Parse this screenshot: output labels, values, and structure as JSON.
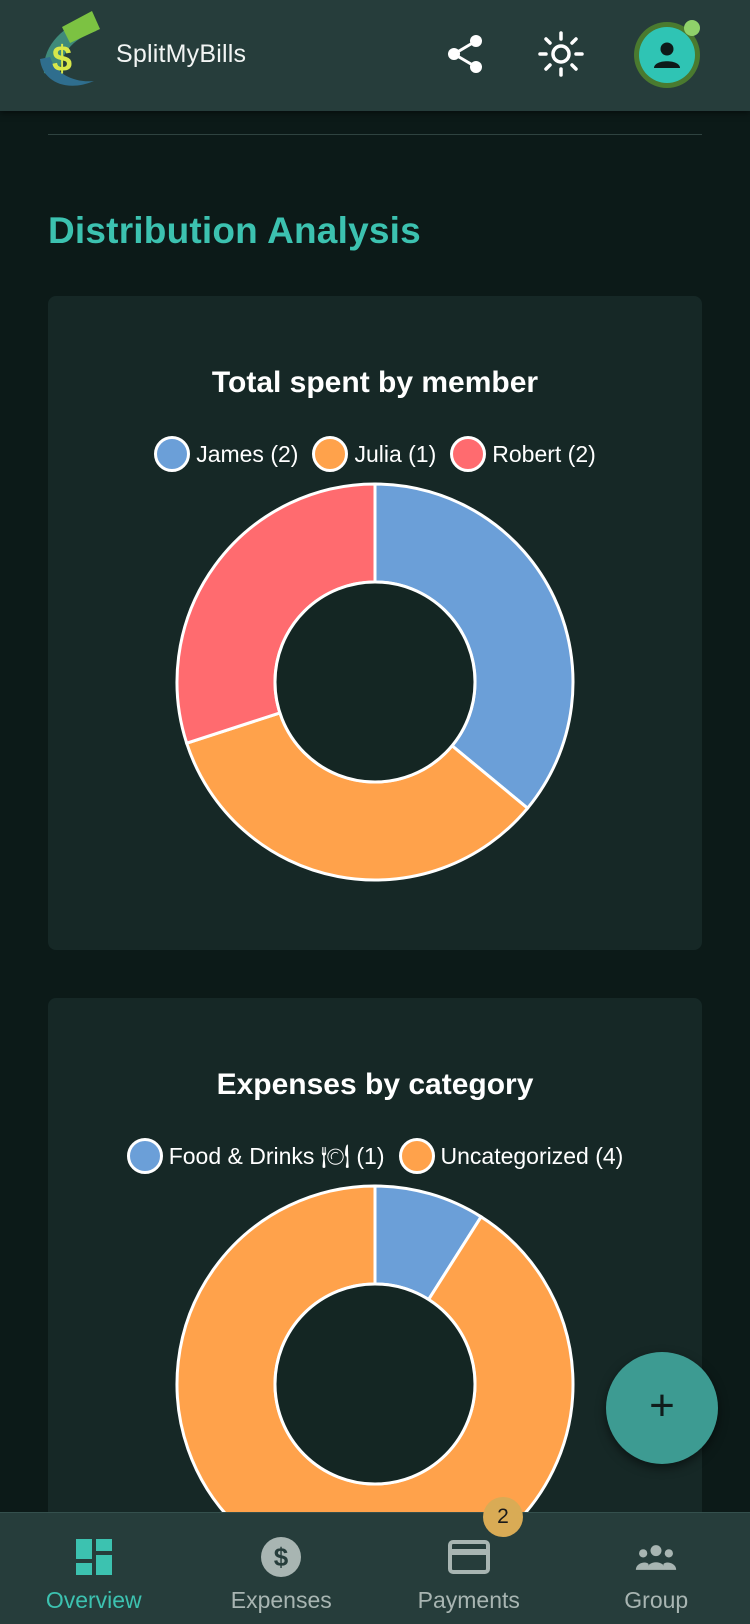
{
  "header": {
    "app_title": "SplitMyBills",
    "share_icon": "share-icon",
    "theme_icon": "sun-icon",
    "avatar_icon": "person-icon"
  },
  "section": {
    "title": "Distribution Analysis"
  },
  "colors": {
    "accent": "#3cc2b0",
    "blue": "#6b9fd8",
    "orange": "#ffa24b",
    "red": "#ff6b6f",
    "card_bg": "#162826",
    "page_bg": "#0c1a18",
    "header_bg": "#263d3b"
  },
  "chart_data": [
    {
      "type": "pie",
      "title": "Total spent by member",
      "categories": [
        "James (2)",
        "Julia (1)",
        "Robert (2)"
      ],
      "values": [
        36,
        34,
        30
      ],
      "colors": [
        "#6b9fd8",
        "#ffa24b",
        "#ff6b6f"
      ],
      "legend": "top"
    },
    {
      "type": "pie",
      "title": "Expenses by category",
      "categories": [
        "Food & Drinks 🍽 (1)",
        "Uncategorized (4)"
      ],
      "values": [
        9,
        91
      ],
      "colors": [
        "#6b9fd8",
        "#ffa24b"
      ],
      "legend": "top"
    }
  ],
  "fab": {
    "label": "+"
  },
  "bottom_nav": {
    "items": [
      {
        "label": "Overview",
        "icon": "dashboard-icon",
        "active": true
      },
      {
        "label": "Expenses",
        "icon": "dollar-icon",
        "active": false
      },
      {
        "label": "Payments",
        "icon": "card-icon",
        "active": false,
        "badge": "2"
      },
      {
        "label": "Group",
        "icon": "group-icon",
        "active": false
      }
    ]
  }
}
